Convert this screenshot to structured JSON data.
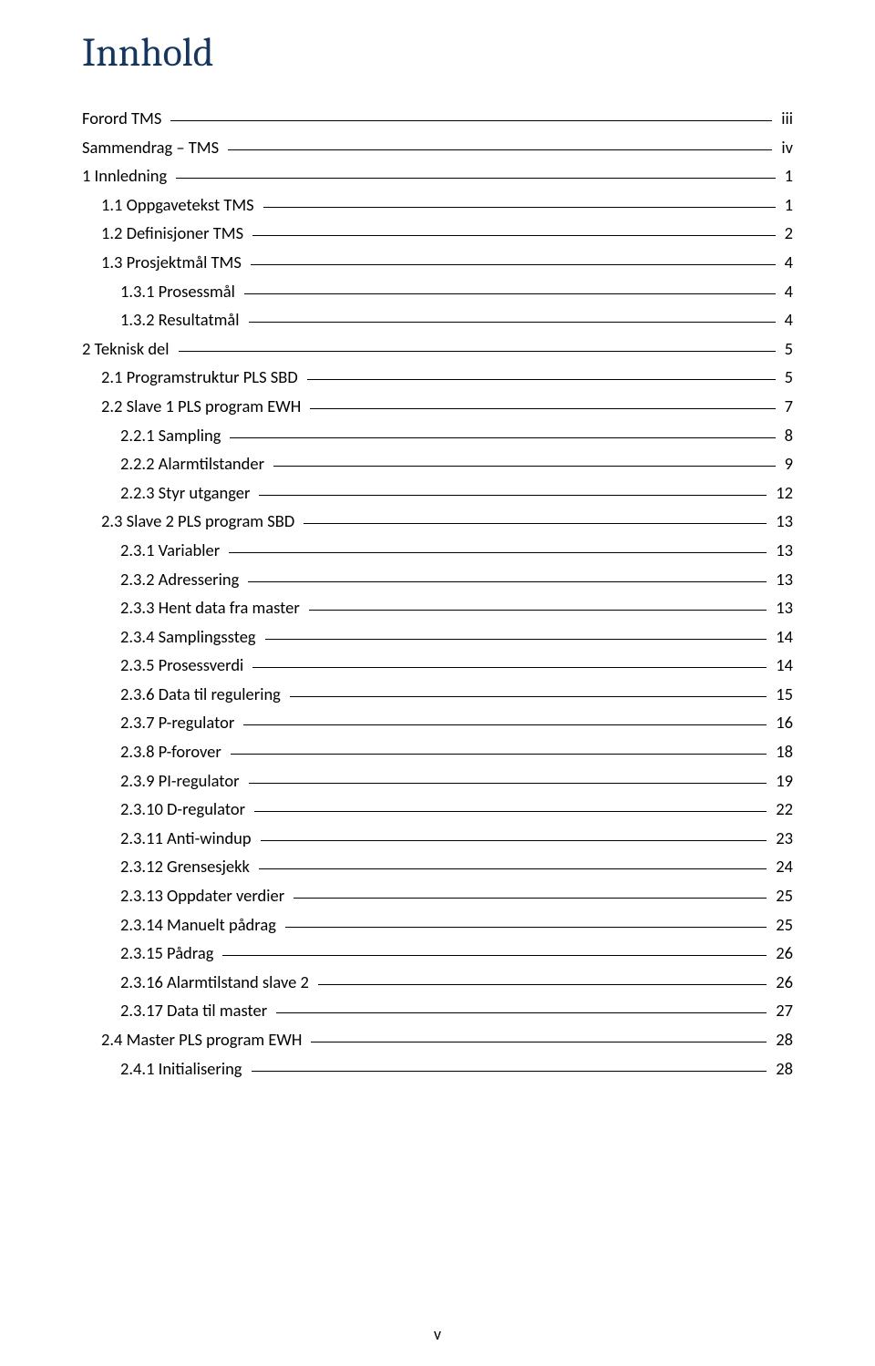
{
  "title": "Innhold",
  "footer": "v",
  "toc": [
    {
      "label": "Forord TMS",
      "page": "iii",
      "indent": 0
    },
    {
      "label": "Sammendrag – TMS",
      "page": "iv",
      "indent": 0
    },
    {
      "label": "1 Innledning",
      "page": "1",
      "indent": 0
    },
    {
      "label": "1.1 Oppgavetekst TMS",
      "page": "1",
      "indent": 1
    },
    {
      "label": "1.2 Definisjoner TMS",
      "page": "2",
      "indent": 1
    },
    {
      "label": "1.3 Prosjektmål TMS",
      "page": "4",
      "indent": 1
    },
    {
      "label": "1.3.1 Prosessmål",
      "page": "4",
      "indent": 2
    },
    {
      "label": "1.3.2 Resultatmål",
      "page": "4",
      "indent": 2
    },
    {
      "label": "2 Teknisk del",
      "page": "5",
      "indent": 0
    },
    {
      "label": "2.1 Programstruktur PLS SBD",
      "page": "5",
      "indent": 1
    },
    {
      "label": "2.2 Slave 1 PLS program EWH",
      "page": "7",
      "indent": 1
    },
    {
      "label": "2.2.1 Sampling",
      "page": "8",
      "indent": 2
    },
    {
      "label": "2.2.2 Alarmtilstander",
      "page": "9",
      "indent": 2
    },
    {
      "label": "2.2.3 Styr utganger",
      "page": "12",
      "indent": 2
    },
    {
      "label": "2.3 Slave 2 PLS program SBD",
      "page": "13",
      "indent": 1
    },
    {
      "label": "2.3.1 Variabler",
      "page": "13",
      "indent": 2
    },
    {
      "label": "2.3.2 Adressering",
      "page": "13",
      "indent": 2
    },
    {
      "label": "2.3.3 Hent data fra master",
      "page": "13",
      "indent": 2
    },
    {
      "label": "2.3.4 Samplingssteg",
      "page": "14",
      "indent": 2
    },
    {
      "label": "2.3.5 Prosessverdi",
      "page": "14",
      "indent": 2
    },
    {
      "label": "2.3.6 Data til regulering",
      "page": "15",
      "indent": 2
    },
    {
      "label": "2.3.7 P-regulator",
      "page": "16",
      "indent": 2
    },
    {
      "label": "2.3.8 P-forover",
      "page": "18",
      "indent": 2
    },
    {
      "label": "2.3.9 PI-regulator",
      "page": "19",
      "indent": 2
    },
    {
      "label": "2.3.10 D-regulator",
      "page": "22",
      "indent": 2
    },
    {
      "label": "2.3.11 Anti-windup",
      "page": "23",
      "indent": 2
    },
    {
      "label": "2.3.12 Grensesjekk",
      "page": "24",
      "indent": 2
    },
    {
      "label": "2.3.13 Oppdater verdier",
      "page": "25",
      "indent": 2
    },
    {
      "label": "2.3.14 Manuelt pådrag",
      "page": "25",
      "indent": 2
    },
    {
      "label": "2.3.15 Pådrag",
      "page": "26",
      "indent": 2
    },
    {
      "label": "2.3.16 Alarmtilstand slave 2",
      "page": "26",
      "indent": 2
    },
    {
      "label": "2.3.17 Data til master",
      "page": "27",
      "indent": 2
    },
    {
      "label": "2.4 Master PLS program EWH",
      "page": "28",
      "indent": 1
    },
    {
      "label": "2.4.1 Initialisering",
      "page": "28",
      "indent": 2
    }
  ]
}
